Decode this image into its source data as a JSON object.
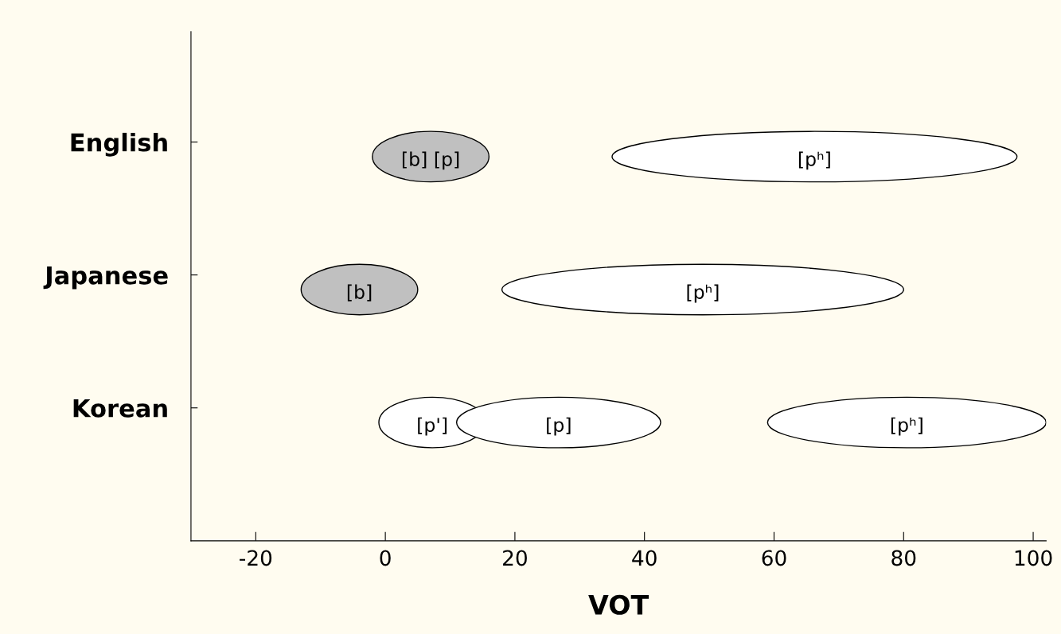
{
  "chart_data": {
    "type": "bar",
    "orientation": "horizontal",
    "xlabel": "VOT",
    "categories": [
      "English",
      "Japanese",
      "Korean"
    ],
    "xlim": [
      -30,
      102
    ],
    "xticks": [
      -20,
      0,
      20,
      40,
      60,
      80,
      100
    ],
    "series": [
      {
        "base": [
          -2,
          -13,
          -1
        ],
        "values": [
          18,
          18,
          16.5
        ],
        "colors": [
          "#c0c0c0",
          "#c0c0c0",
          "#ffffff"
        ],
        "value_labels": [
          "[b] [p]",
          "[b]",
          "[p']"
        ]
      },
      {
        "base": [
          null,
          null,
          11
        ],
        "values": [
          null,
          null,
          31.5
        ],
        "colors": [
          "#ffffff",
          "#ffffff",
          "#ffffff"
        ],
        "value_labels": [
          null,
          null,
          "[p]"
        ]
      },
      {
        "base": [
          35,
          18,
          59
        ],
        "values": [
          62.5,
          62,
          43
        ],
        "colors": [
          "#ffffff",
          "#ffffff",
          "#ffffff"
        ],
        "value_labels": [
          "[pʰ]",
          "[pʰ]",
          "[pʰ]"
        ]
      }
    ],
    "grid": false,
    "legend": false
  }
}
